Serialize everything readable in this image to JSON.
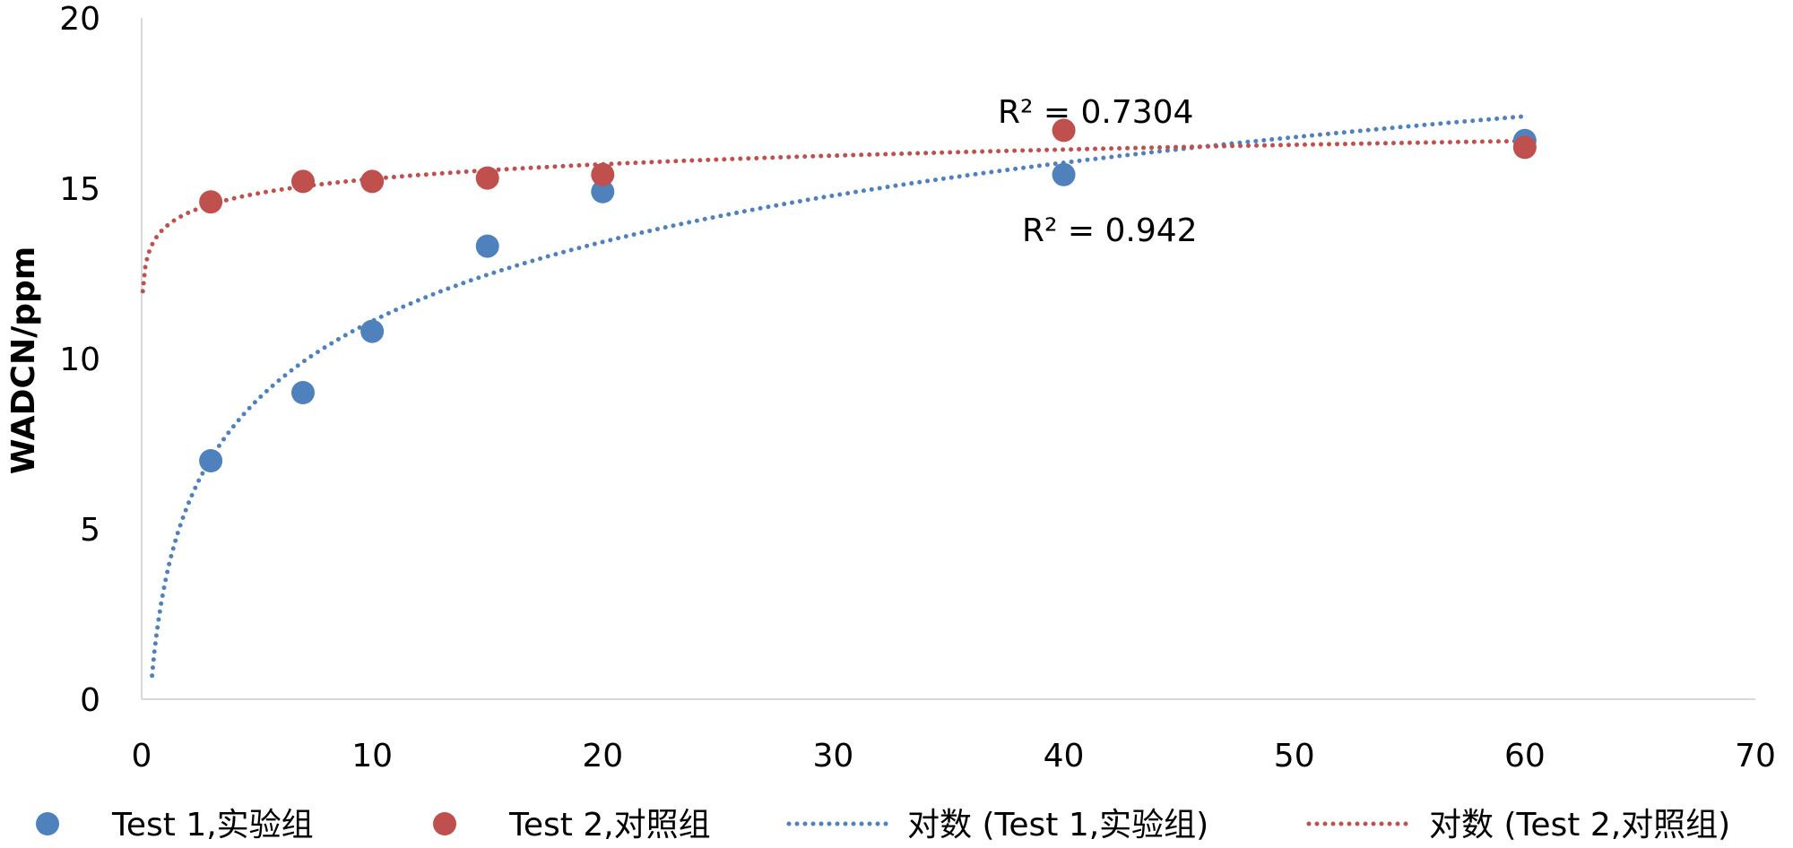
{
  "chart_data": {
    "type": "scatter",
    "ylabel": "WADCN/ppm",
    "xlabel": "",
    "xlim": [
      0,
      70
    ],
    "ylim": [
      0,
      20
    ],
    "x_ticks": [
      "0",
      "10",
      "20",
      "30",
      "40",
      "50",
      "60",
      "70"
    ],
    "y_ticks": [
      "0",
      "5",
      "10",
      "15",
      "20"
    ],
    "grid": false,
    "legend_position": "bottom",
    "series": [
      {
        "name": "Test 1,实验组",
        "color": "#4F81BD",
        "points": [
          {
            "x": 3,
            "y": 7.0
          },
          {
            "x": 7,
            "y": 9.0
          },
          {
            "x": 10,
            "y": 10.8
          },
          {
            "x": 15,
            "y": 13.3
          },
          {
            "x": 20,
            "y": 14.9
          },
          {
            "x": 40,
            "y": 15.4
          },
          {
            "x": 60,
            "y": 16.4
          }
        ]
      },
      {
        "name": "Test 2,对照组",
        "color": "#C0504D",
        "points": [
          {
            "x": 3,
            "y": 14.6
          },
          {
            "x": 7,
            "y": 15.2
          },
          {
            "x": 10,
            "y": 15.2
          },
          {
            "x": 15,
            "y": 15.3
          },
          {
            "x": 20,
            "y": 15.4
          },
          {
            "x": 40,
            "y": 16.7
          },
          {
            "x": 60,
            "y": 16.2
          }
        ]
      }
    ],
    "trendlines": [
      {
        "name": "对数 (Test 1,实验组)",
        "type": "logarithmic",
        "of_series": "Test 1,实验组",
        "color": "#4F81BD",
        "r2_label": "R² = 0.942"
      },
      {
        "name": "对数 (Test 2,对照组)",
        "type": "logarithmic",
        "of_series": "Test 2,对照组",
        "color": "#C0504D",
        "r2_label": "R² = 0.7304"
      }
    ]
  }
}
